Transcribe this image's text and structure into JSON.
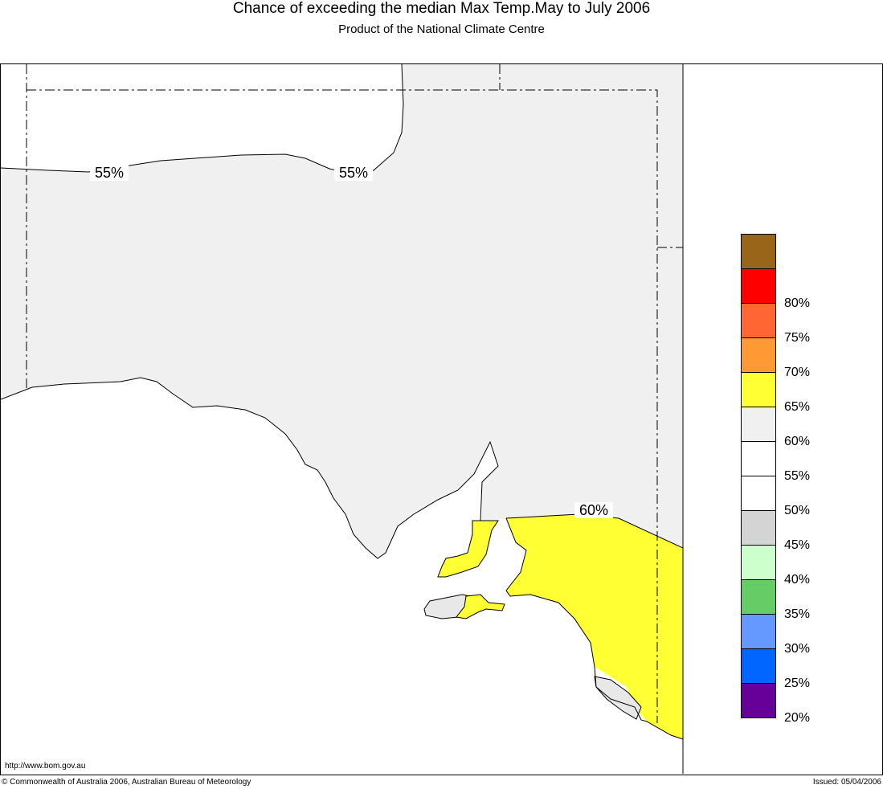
{
  "header": {
    "title": "Chance of exceeding the median Max Temp.May to July 2006",
    "subtitle": "Product of the National Climate Centre"
  },
  "map": {
    "contour_labels": [
      "55%",
      "55%",
      "60%"
    ],
    "fill_colors": {
      "region_55_60": "#f0f0f0",
      "region_60_65": "#ffff33",
      "region_50_55": "#ffffff",
      "coast": "#000000"
    }
  },
  "legend": {
    "items": [
      {
        "color": "#996619",
        "label": ""
      },
      {
        "color": "#ff0000",
        "label": "80%"
      },
      {
        "color": "#ff6633",
        "label": "75%"
      },
      {
        "color": "#ff9933",
        "label": "70%"
      },
      {
        "color": "#ffff33",
        "label": "65%"
      },
      {
        "color": "#f0f0f0",
        "label": "60%"
      },
      {
        "color": "#ffffff",
        "label": "55%"
      },
      {
        "color": "#ffffff",
        "label": "50%"
      },
      {
        "color": "#d4d4d4",
        "label": "45%"
      },
      {
        "color": "#ccffcc",
        "label": "40%"
      },
      {
        "color": "#66cc66",
        "label": "35%"
      },
      {
        "color": "#6699ff",
        "label": "30%"
      },
      {
        "color": "#0066ff",
        "label": "25%"
      },
      {
        "color": "#660099",
        "label": "20%"
      }
    ]
  },
  "footer": {
    "url": "http://www.bom.gov.au",
    "copyright": "© Commonwealth of Australia 2006, Australian Bureau of Meteorology",
    "issued": "Issued: 05/04/2006"
  }
}
